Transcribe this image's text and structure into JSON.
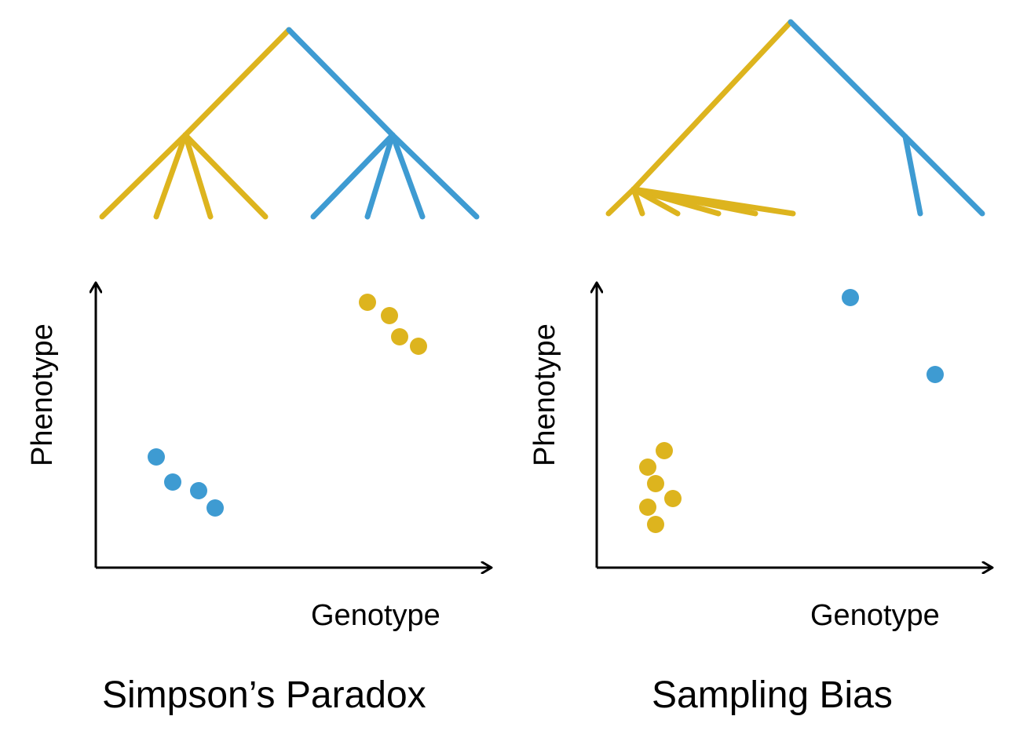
{
  "colors": {
    "yellow": "#DDB41E",
    "blue": "#3E9BD2",
    "axis": "#000000"
  },
  "panels": [
    {
      "title": "Simpson’s Paradox",
      "xlabel": "Genotype",
      "ylabel": "Phenotype",
      "tree": "two balanced clades, each with four tips",
      "points": {
        "yellow_count": 4,
        "blue_count": 4
      }
    },
    {
      "title": "Sampling Bias",
      "xlabel": "Genotype",
      "ylabel": "Phenotype",
      "tree": "one clade with a burst of six short tips, one clade with two long tips",
      "points": {
        "yellow_count": 6,
        "blue_count": 2
      }
    }
  ]
}
